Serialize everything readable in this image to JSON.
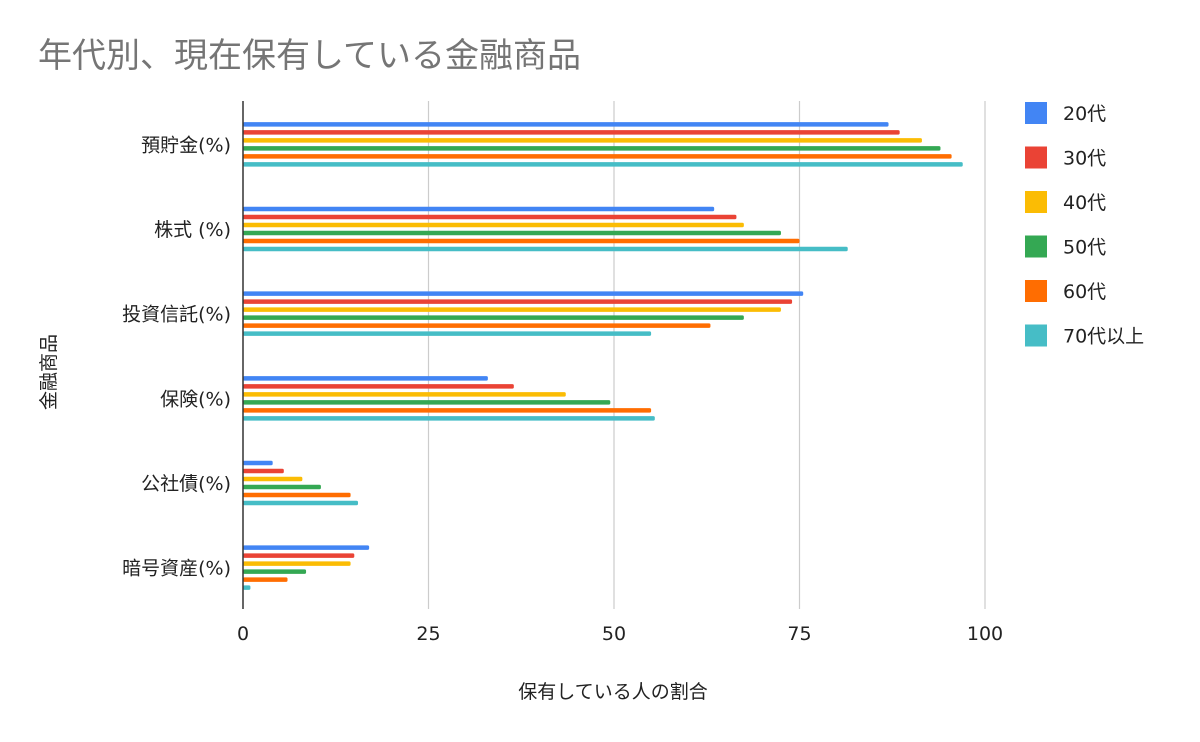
{
  "chart_data": {
    "type": "bar",
    "orientation": "horizontal",
    "title": "年代別、現在保有している金融商品",
    "xlabel": "保有している人の割合",
    "ylabel": "金融商品",
    "xlim": [
      0,
      100
    ],
    "xticks": [
      "0",
      "25",
      "50",
      "75",
      "100"
    ],
    "grid": true,
    "legend_position": "right",
    "categories": [
      "預貯金(%)",
      "株式 (%)",
      "投資信託(%)",
      "保険(%)",
      "公社債(%)",
      "暗号資産(%)"
    ],
    "series": [
      {
        "name": "20代",
        "color": "#4285F4",
        "values": [
          87,
          63.5,
          75.5,
          33,
          4,
          17
        ]
      },
      {
        "name": "30代",
        "color": "#EA4335",
        "values": [
          88.5,
          66.5,
          74,
          36.5,
          5.5,
          15
        ]
      },
      {
        "name": "40代",
        "color": "#FBBC04",
        "values": [
          91.5,
          67.5,
          72.5,
          43.5,
          8,
          14.5
        ]
      },
      {
        "name": "50代",
        "color": "#34A853",
        "values": [
          94,
          72.5,
          67.5,
          49.5,
          10.5,
          8.5
        ]
      },
      {
        "name": "60代",
        "color": "#FF6D01",
        "values": [
          95.5,
          75,
          63,
          55,
          14.5,
          6
        ]
      },
      {
        "name": "70代以上",
        "color": "#46BDC6",
        "values": [
          97,
          81.5,
          55,
          55.5,
          15.5,
          1
        ]
      }
    ]
  }
}
